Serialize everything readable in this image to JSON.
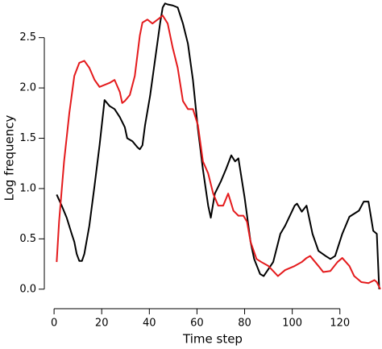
{
  "chart_data": {
    "type": "line",
    "x_label": "Time step",
    "y_label": "Log frequency",
    "xlim": [
      -2.4,
      137
    ],
    "ylim": [
      -0.09,
      2.85
    ],
    "xticks": [
      0,
      20,
      40,
      60,
      80,
      100,
      120
    ],
    "yticks": [
      {
        "value": 0,
        "label": "0.0"
      },
      0.5,
      {
        "value": 1,
        "label": "1.0"
      },
      1.5,
      {
        "value": 2,
        "label": "2.0"
      },
      2.5
    ],
    "series": [
      {
        "color": "#000000",
        "x": [
          1.1,
          3.2,
          5.3,
          7.4,
          8.5,
          9.5,
          10.6,
          11.7,
          12.7,
          14.8,
          17,
          19.1,
          21.2,
          23.3,
          25.4,
          27.6,
          29.7,
          30.7,
          32.9,
          35,
          36,
          37.1,
          38.2,
          40.3,
          42.4,
          44.5,
          45.6,
          46.6,
          47.7,
          49.8,
          51.9,
          54.1,
          56.2,
          58.3,
          60.4,
          62.5,
          64.7,
          65.8,
          67.5,
          70,
          72.3,
          74.4,
          76,
          77.4,
          80,
          82.5,
          84,
          86.5,
          88,
          90,
          92,
          95,
          97,
          101,
          102,
          104,
          106,
          108.5,
          111,
          114,
          116,
          118,
          121,
          124,
          128,
          130,
          132,
          134,
          135.5,
          136.5
        ],
        "values": [
          0.94,
          0.83,
          0.71,
          0.55,
          0.47,
          0.35,
          0.28,
          0.28,
          0.35,
          0.63,
          1.03,
          1.43,
          1.88,
          1.82,
          1.79,
          1.71,
          1.61,
          1.5,
          1.47,
          1.41,
          1.39,
          1.43,
          1.63,
          1.92,
          2.28,
          2.64,
          2.8,
          2.84,
          2.83,
          2.82,
          2.8,
          2.64,
          2.44,
          2.08,
          1.59,
          1.19,
          0.83,
          0.71,
          0.95,
          1.07,
          1.2,
          1.33,
          1.27,
          1.3,
          0.91,
          0.47,
          0.3,
          0.15,
          0.13,
          0.2,
          0.27,
          0.55,
          0.63,
          0.83,
          0.85,
          0.77,
          0.83,
          0.55,
          0.38,
          0.33,
          0.3,
          0.33,
          0.55,
          0.72,
          0.78,
          0.87,
          0.87,
          0.58,
          0.55,
          0.0
        ]
      },
      {
        "color": "#e41a1c",
        "x": [
          1.1,
          2.1,
          4.2,
          6.4,
          8.5,
          10.6,
          12.7,
          14.8,
          17,
          19.1,
          21.2,
          23.3,
          25.4,
          27.6,
          28.6,
          29.7,
          31.8,
          33.9,
          36,
          37.1,
          39.2,
          41.3,
          43.5,
          45.6,
          47.7,
          49.8,
          51.9,
          54.1,
          56.2,
          58.3,
          60.4,
          62.5,
          64.7,
          66.8,
          68.9,
          71,
          73.1,
          75.3,
          77.4,
          79.5,
          81,
          82.5,
          85,
          87,
          90,
          94,
          97,
          101,
          104,
          106,
          107.5,
          111,
          113,
          116,
          119,
          121,
          124,
          126,
          129,
          132,
          134.5,
          135.5,
          137
        ],
        "values": [
          0.27,
          0.67,
          1.27,
          1.75,
          2.12,
          2.25,
          2.27,
          2.2,
          2.08,
          2.01,
          2.03,
          2.05,
          2.08,
          1.96,
          1.85,
          1.87,
          1.93,
          2.12,
          2.52,
          2.65,
          2.68,
          2.64,
          2.68,
          2.72,
          2.64,
          2.4,
          2.2,
          1.87,
          1.79,
          1.79,
          1.63,
          1.27,
          1.15,
          0.95,
          0.83,
          0.83,
          0.95,
          0.78,
          0.73,
          0.73,
          0.67,
          0.47,
          0.3,
          0.27,
          0.23,
          0.13,
          0.19,
          0.23,
          0.27,
          0.31,
          0.33,
          0.23,
          0.17,
          0.18,
          0.27,
          0.31,
          0.23,
          0.13,
          0.07,
          0.06,
          0.09,
          0.07,
          0.0
        ]
      }
    ]
  }
}
